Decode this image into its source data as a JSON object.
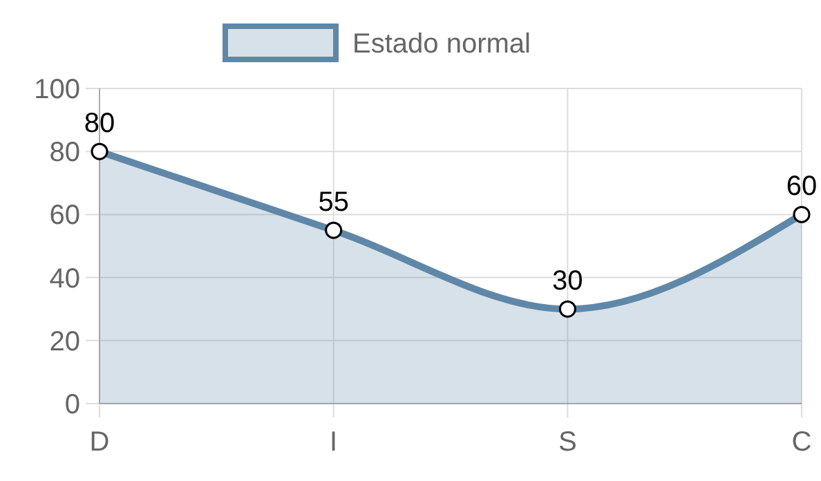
{
  "chart_data": {
    "type": "area",
    "categories": [
      "D",
      "I",
      "S",
      "C"
    ],
    "series": [
      {
        "name": "Estado normal",
        "color": "#5f87a8",
        "values": [
          80,
          55,
          30,
          60
        ]
      }
    ],
    "ylim": [
      0,
      100
    ],
    "yticks": [
      0,
      20,
      40,
      60,
      80,
      100
    ],
    "grid": true,
    "legend": "top",
    "data_labels": true,
    "marker": "circle",
    "line_style": "solid"
  }
}
